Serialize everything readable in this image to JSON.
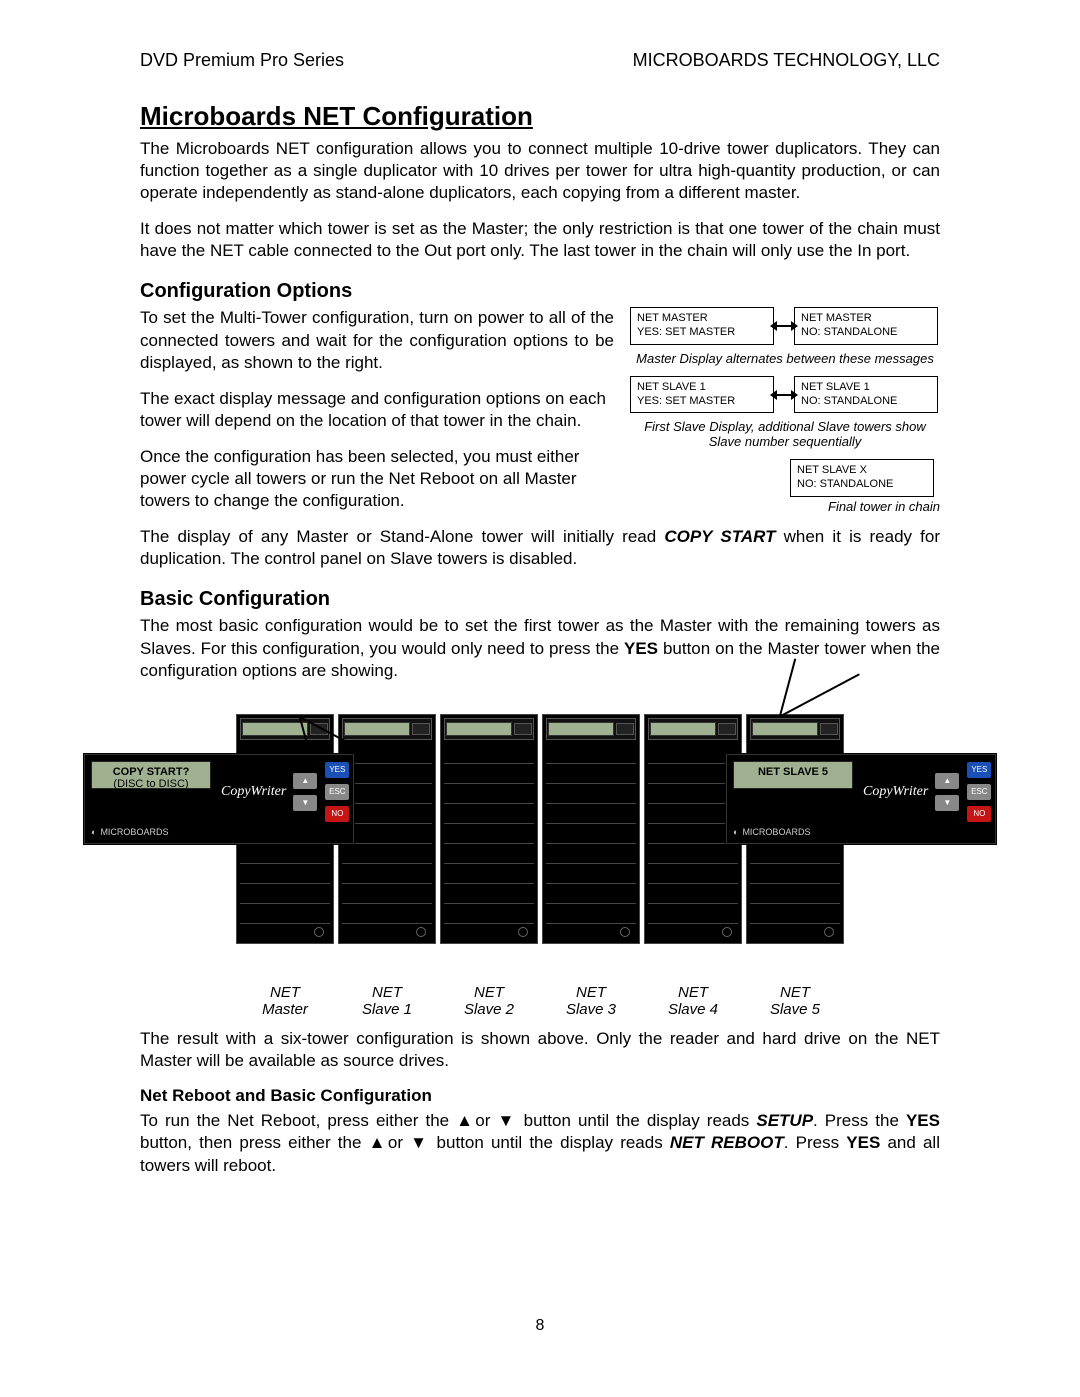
{
  "header": {
    "left": "DVD Premium Pro Series",
    "right": "MICROBOARDS TECHNOLOGY, LLC"
  },
  "title": "Microboards NET Configuration",
  "p1": "The Microboards NET configuration allows you to connect multiple 10-drive tower duplicators. They can function together as a single duplicator with 10 drives per tower for ultra high-quantity production, or can operate independently as stand-alone duplicators, each copying from a different master.",
  "p2": "It does not matter which tower is set as the Master; the only restriction is that one tower of the chain must have the NET cable connected to the Out port only.  The last tower in the chain will only use the In port.",
  "h2_config": "Configuration Options",
  "p3": "To set the Multi-Tower configuration, turn on power to all of the connected towers and wait for the configuration options to be displayed, as shown to the right.",
  "p4": "The exact display message and configuration options on each tower will depend on the location of that tower in the chain.",
  "p5": "Once the configuration has been selected, you must either power cycle all towers or run the Net Reboot on all Master towers to change the configuration.",
  "p6_a": "The display of any Master or Stand-Alone tower will initially read ",
  "p6_b": "COPY START",
  "p6_c": " when it is ready for duplication.  The control panel on Slave towers is disabled.",
  "diagram": {
    "master_a_1": "NET MASTER",
    "master_a_2": "YES: SET MASTER",
    "master_b_1": "NET MASTER",
    "master_b_2": "NO: STANDALONE",
    "master_caption": "Master Display alternates between these messages",
    "slave_a_1": "NET SLAVE 1",
    "slave_a_2": "YES: SET MASTER",
    "slave_b_1": "NET SLAVE 1",
    "slave_b_2": "NO: STANDALONE",
    "slave_caption": "First Slave Display, additional Slave towers show Slave number sequentially",
    "final_1": "NET SLAVE X",
    "final_2": "NO: STANDALONE",
    "final_caption": "Final tower in chain"
  },
  "h2_basic": "Basic Configuration",
  "p7_a": "The most basic configuration would be to set the first tower as the Master with the remaining towers as Slaves.  For this configuration, you would only need to press the ",
  "p7_b": "YES",
  "p7_c": " button on the Master tower when the configuration options are showing.",
  "callout_left": {
    "line1": "COPY START?",
    "line2": "(DISC to DISC)"
  },
  "callout_right": {
    "line1": "NET SLAVE  5",
    "line2": ""
  },
  "callout_brand": "CopyWriter",
  "callout_logo": "MICROBOARDS",
  "btn_yes": "YES",
  "btn_esc": "ESC",
  "btn_no": "NO",
  "tower_labels": [
    {
      "l1": "NET",
      "l2": "Master"
    },
    {
      "l1": "NET",
      "l2": "Slave 1"
    },
    {
      "l1": "NET",
      "l2": "Slave 2"
    },
    {
      "l1": "NET",
      "l2": "Slave 3"
    },
    {
      "l1": "NET",
      "l2": "Slave 4"
    },
    {
      "l1": "NET",
      "l2": "Slave 5"
    }
  ],
  "p8": "The result with a six-tower configuration is shown above.  Only the reader and hard drive on the NET Master will be available as source drives.",
  "h3_reboot": "Net Reboot and Basic Configuration",
  "p9_a": "To run the Net Reboot, press either the ▲or ▼ button until the display reads ",
  "p9_b": "SETUP",
  "p9_c": ".  Press the ",
  "p9_d": "YES",
  "p9_e": " button, then press either the ▲or ▼ button until the display reads ",
  "p9_f": "NET REBOOT",
  "p9_g": ".  Press ",
  "p9_h": "YES",
  "p9_i": " and all towers will reboot.",
  "page_number": "8",
  "num_towers": 6,
  "slots_per_tower": 9
}
